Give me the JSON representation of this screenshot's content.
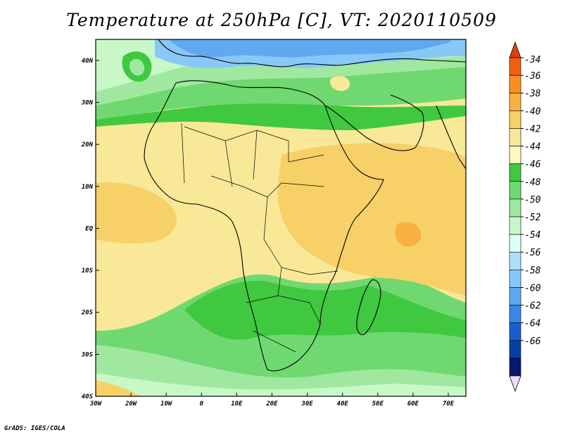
{
  "title": "Temperature at 250hPa [C], VT: 2020110509",
  "credit": "GrADS: IGES/COLA",
  "map": {
    "lon_range": [
      -30,
      75
    ],
    "lat_range": [
      -40,
      45
    ],
    "lon_ticks": [
      {
        "lon": -30,
        "label": "30W"
      },
      {
        "lon": -20,
        "label": "20W"
      },
      {
        "lon": -10,
        "label": "10W"
      },
      {
        "lon": 0,
        "label": "0"
      },
      {
        "lon": 10,
        "label": "10E"
      },
      {
        "lon": 20,
        "label": "20E"
      },
      {
        "lon": 30,
        "label": "30E"
      },
      {
        "lon": 40,
        "label": "40E"
      },
      {
        "lon": 50,
        "label": "50E"
      },
      {
        "lon": 60,
        "label": "60E"
      },
      {
        "lon": 70,
        "label": "70E"
      }
    ],
    "lat_ticks": [
      {
        "lat": 40,
        "label": "40N"
      },
      {
        "lat": 30,
        "label": "30N"
      },
      {
        "lat": 20,
        "label": "20N"
      },
      {
        "lat": 10,
        "label": "10N"
      },
      {
        "lat": 0,
        "label": "EQ"
      },
      {
        "lat": -10,
        "label": "10S"
      },
      {
        "lat": -20,
        "label": "20S"
      },
      {
        "lat": -30,
        "label": "30S"
      },
      {
        "lat": -40,
        "label": "40S"
      }
    ]
  },
  "colorbar": {
    "levels": [
      "-34",
      "-36",
      "-38",
      "-40",
      "-42",
      "-44",
      "-46",
      "-48",
      "-50",
      "-52",
      "-54",
      "-56",
      "-58",
      "-60",
      "-62",
      "-64",
      "-66"
    ],
    "colors": [
      "#f06010",
      "#f89020",
      "#f8b040",
      "#f8d068",
      "#f8e898",
      "#fff8c0",
      "#40c840",
      "#70d870",
      "#a0e8a0",
      "#c8f8c8",
      "#e0fff8",
      "#b0e0f8",
      "#88c8f8",
      "#60a8f0",
      "#3888e8",
      "#1860d0",
      "#0840a0",
      "#081870"
    ],
    "top_color": "#e04010",
    "bottom_color": "#e8e0ff"
  }
}
